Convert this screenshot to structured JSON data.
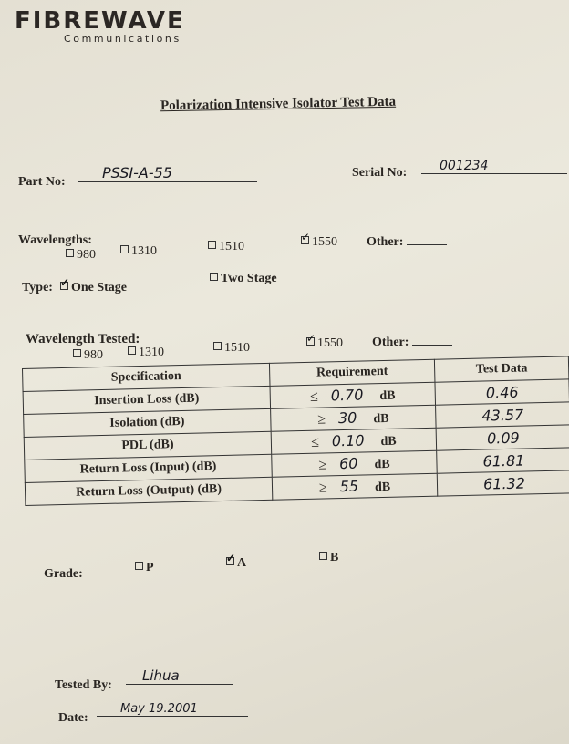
{
  "logo": {
    "name": "FibreWave",
    "subtitle": "Communications"
  },
  "title": "Polarization Intensive Isolator Test Data",
  "part_no": {
    "label": "Part No:",
    "value": "PSSI-A-55"
  },
  "serial_no": {
    "label": "Serial No:",
    "value": "001234"
  },
  "wavelengths": {
    "label": "Wavelengths:",
    "options": [
      {
        "label": "980",
        "checked": false
      },
      {
        "label": "1310",
        "checked": false
      },
      {
        "label": "1510",
        "checked": false
      },
      {
        "label": "1550",
        "checked": true
      }
    ],
    "other_label": "Other:"
  },
  "type": {
    "label": "Type:",
    "options": [
      {
        "label": "One Stage",
        "checked": true
      },
      {
        "label": "Two Stage",
        "checked": false
      }
    ]
  },
  "wavelength_tested": {
    "label": "Wavelength Tested:",
    "options": [
      {
        "label": "980",
        "checked": false
      },
      {
        "label": "1310",
        "checked": false
      },
      {
        "label": "1510",
        "checked": false
      },
      {
        "label": "1550",
        "checked": true
      }
    ],
    "other_label": "Other:"
  },
  "table": {
    "headers": [
      "Specification",
      "Requirement",
      "Test Data"
    ],
    "rows": [
      {
        "spec": "Insertion Loss (dB)",
        "op": "≤",
        "req": "0.70",
        "unit": "dB",
        "value": "0.46"
      },
      {
        "spec": "Isolation (dB)",
        "op": "≥",
        "req": "30",
        "unit": "dB",
        "value": "43.57"
      },
      {
        "spec": "PDL (dB)",
        "op": "≤",
        "req": "0.10",
        "unit": "dB",
        "value": "0.09"
      },
      {
        "spec": "Return Loss (Input) (dB)",
        "op": "≥",
        "req": "60",
        "unit": "dB",
        "value": "61.81"
      },
      {
        "spec": "Return Loss (Output) (dB)",
        "op": "≥",
        "req": "55",
        "unit": "dB",
        "value": "61.32"
      }
    ]
  },
  "grade": {
    "label": "Grade:",
    "options": [
      {
        "label": "P",
        "checked": false
      },
      {
        "label": "A",
        "checked": true
      },
      {
        "label": "B",
        "checked": false
      }
    ]
  },
  "tested_by": {
    "label": "Tested By:",
    "value": "Lihua"
  },
  "date": {
    "label": "Date:",
    "value": "May 19.2001"
  }
}
